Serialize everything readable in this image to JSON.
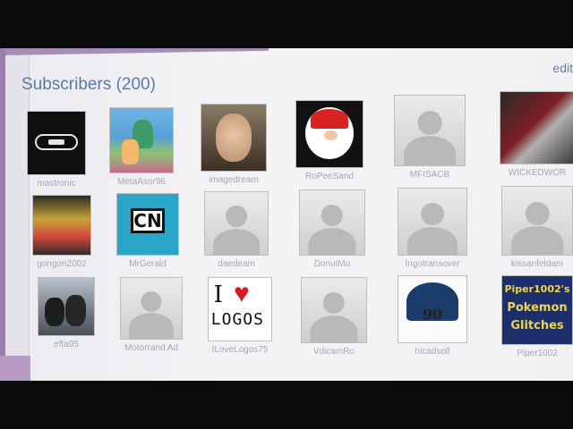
{
  "header": {
    "title": "Subscribers (200)",
    "edit_label": "edit"
  },
  "subscribers": [
    {
      "name": "mastronic",
      "avatar": "vhs-logo-icon"
    },
    {
      "name": "MetaAsur96",
      "avatar": "cartoon-avatar"
    },
    {
      "name": "imagedream",
      "avatar": "face-photo"
    },
    {
      "name": "RoPeeSand",
      "avatar": "mario-avatar"
    },
    {
      "name": "MFISACB",
      "avatar": "default-avatar"
    },
    {
      "name": "WICKEDWOR",
      "avatar": "car-photo"
    },
    {
      "name": "gongon2002",
      "avatar": "cartoon-avatar-2"
    },
    {
      "name": "MrGerald",
      "avatar": "cartoon-network-logo"
    },
    {
      "name": "daedeam",
      "avatar": "default-avatar"
    },
    {
      "name": "DonutMo",
      "avatar": "default-avatar"
    },
    {
      "name": "Ingotransover",
      "avatar": "default-avatar"
    },
    {
      "name": "kissanfeldam",
      "avatar": "default-avatar"
    },
    {
      "name": "efta95",
      "avatar": "two-people-photo"
    },
    {
      "name": "Motorrand Ad",
      "avatar": "default-avatar"
    },
    {
      "name": "ILoveLogos75",
      "avatar": "i-love-logos"
    },
    {
      "name": "VdicamRo",
      "avatar": "default-avatar"
    },
    {
      "name": "hicadsoll",
      "avatar": "paramount-90-logo"
    },
    {
      "name": "Piper1002",
      "avatar": "pokemon-glitches"
    }
  ],
  "avatar_text": {
    "cn": "CN",
    "love_i": "I",
    "love_heart": "♥",
    "love_word": "LOGOS",
    "paramount_years": "90",
    "poke_line1": "Piper1002's",
    "poke_line2": "Pokemon",
    "poke_line3": "Glitches"
  }
}
